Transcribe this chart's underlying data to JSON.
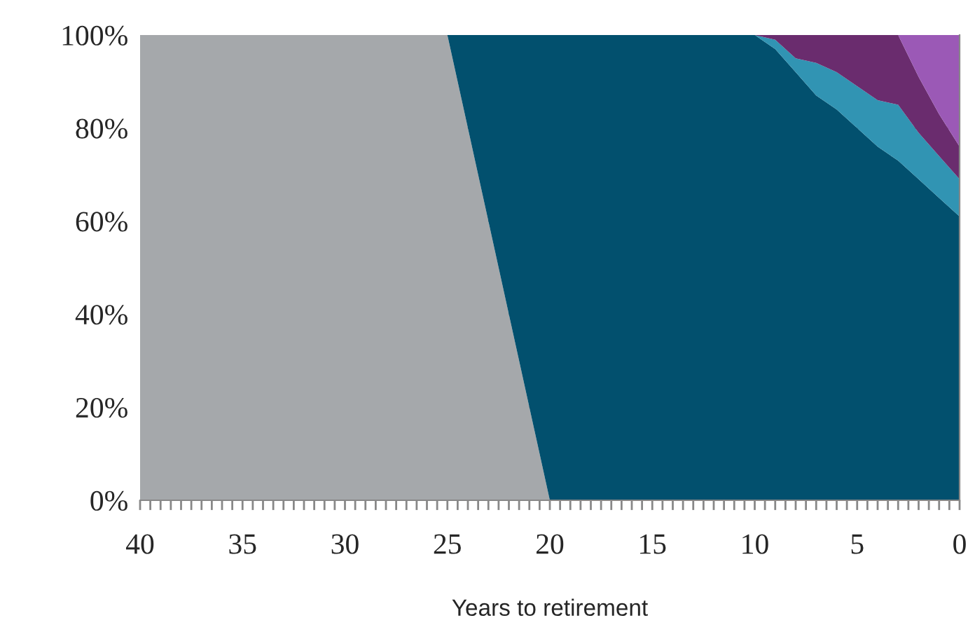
{
  "chart_data": {
    "type": "area",
    "stacked": true,
    "xlabel": "Years to retirement",
    "x": [
      40,
      39,
      38,
      37,
      36,
      35,
      34,
      33,
      32,
      31,
      30,
      29,
      28,
      27,
      26,
      25,
      24,
      23,
      22,
      21,
      20,
      19,
      18,
      17,
      16,
      15,
      14,
      13,
      12,
      11,
      10,
      9,
      8,
      7,
      6,
      5,
      4,
      3,
      2,
      1,
      0
    ],
    "series": [
      {
        "color": "#a5a8ab",
        "values": [
          100,
          100,
          100,
          100,
          100,
          100,
          100,
          100,
          100,
          100,
          100,
          100,
          100,
          100,
          100,
          100,
          80,
          60,
          40,
          20,
          0,
          null,
          null,
          null,
          null,
          null,
          null,
          null,
          null,
          null,
          null,
          null,
          null,
          null,
          null,
          null,
          null,
          null,
          null,
          null,
          null
        ]
      },
      {
        "color": "#02506e",
        "values": [
          null,
          null,
          null,
          null,
          null,
          null,
          null,
          null,
          null,
          null,
          null,
          null,
          null,
          null,
          null,
          0,
          20,
          40,
          60,
          80,
          100,
          100,
          100,
          100,
          100,
          100,
          100,
          100,
          100,
          100,
          100,
          97,
          92,
          87,
          84,
          80,
          76,
          73,
          69,
          65,
          61
        ]
      },
      {
        "color": "#3194b3",
        "values": [
          null,
          null,
          null,
          null,
          null,
          null,
          null,
          null,
          null,
          null,
          null,
          null,
          null,
          null,
          null,
          null,
          null,
          null,
          null,
          null,
          null,
          null,
          null,
          null,
          null,
          null,
          null,
          null,
          null,
          null,
          0,
          2,
          3,
          7,
          8,
          9,
          10,
          12,
          10,
          9,
          8
        ]
      },
      {
        "color": "#6a2c6e",
        "values": [
          null,
          null,
          null,
          null,
          null,
          null,
          null,
          null,
          null,
          null,
          null,
          null,
          null,
          null,
          null,
          null,
          null,
          null,
          null,
          null,
          null,
          null,
          null,
          null,
          null,
          null,
          null,
          null,
          null,
          null,
          0,
          1,
          5,
          6,
          8,
          11,
          14,
          15,
          12,
          9,
          7
        ]
      },
      {
        "color": "#9b59b6",
        "values": [
          null,
          null,
          null,
          null,
          null,
          null,
          null,
          null,
          null,
          null,
          null,
          null,
          null,
          null,
          null,
          null,
          null,
          null,
          null,
          null,
          null,
          null,
          null,
          null,
          null,
          null,
          null,
          null,
          null,
          null,
          null,
          null,
          null,
          null,
          null,
          null,
          null,
          0,
          9,
          17,
          24
        ]
      }
    ],
    "xlim": [
      40,
      0
    ],
    "ylim": [
      0,
      100
    ],
    "xticks": [
      40,
      {
        "value": 39.5,
        "label": null
      },
      {
        "value": 39,
        "label": null
      },
      {
        "value": 38.5,
        "label": null
      },
      {
        "value": 38,
        "label": null
      },
      {
        "value": 37.5,
        "label": null
      },
      {
        "value": 37,
        "label": null
      },
      {
        "value": 36.5,
        "label": null
      },
      {
        "value": 36,
        "label": null
      },
      {
        "value": 35.5,
        "label": null
      },
      35,
      {
        "value": 34.5,
        "label": null
      },
      {
        "value": 34,
        "label": null
      },
      {
        "value": 33.5,
        "label": null
      },
      {
        "value": 33,
        "label": null
      },
      {
        "value": 32.5,
        "label": null
      },
      {
        "value": 32,
        "label": null
      },
      {
        "value": 31.5,
        "label": null
      },
      {
        "value": 31,
        "label": null
      },
      {
        "value": 30.5,
        "label": null
      },
      30,
      {
        "value": 29.5,
        "label": null
      },
      {
        "value": 29,
        "label": null
      },
      {
        "value": 28.5,
        "label": null
      },
      {
        "value": 28,
        "label": null
      },
      {
        "value": 27.5,
        "label": null
      },
      {
        "value": 27,
        "label": null
      },
      {
        "value": 26.5,
        "label": null
      },
      {
        "value": 26,
        "label": null
      },
      {
        "value": 25.5,
        "label": null
      },
      25,
      {
        "value": 24.5,
        "label": null
      },
      {
        "value": 24,
        "label": null
      },
      {
        "value": 23.5,
        "label": null
      },
      {
        "value": 23,
        "label": null
      },
      {
        "value": 22.5,
        "label": null
      },
      {
        "value": 22,
        "label": null
      },
      {
        "value": 21.5,
        "label": null
      },
      {
        "value": 21,
        "label": null
      },
      {
        "value": 20.5,
        "label": null
      },
      20,
      {
        "value": 19.5,
        "label": null
      },
      {
        "value": 19,
        "label": null
      },
      {
        "value": 18.5,
        "label": null
      },
      {
        "value": 18,
        "label": null
      },
      {
        "value": 17.5,
        "label": null
      },
      {
        "value": 17,
        "label": null
      },
      {
        "value": 16.5,
        "label": null
      },
      {
        "value": 16,
        "label": null
      },
      {
        "value": 15.5,
        "label": null
      },
      15,
      {
        "value": 14.5,
        "label": null
      },
      {
        "value": 14,
        "label": null
      },
      {
        "value": 13.5,
        "label": null
      },
      {
        "value": 13,
        "label": null
      },
      {
        "value": 12.5,
        "label": null
      },
      {
        "value": 12,
        "label": null
      },
      {
        "value": 11.5,
        "label": null
      },
      {
        "value": 11,
        "label": null
      },
      {
        "value": 10.5,
        "label": null
      },
      10,
      {
        "value": 9.5,
        "label": null
      },
      {
        "value": 9,
        "label": null
      },
      {
        "value": 8.5,
        "label": null
      },
      {
        "value": 8,
        "label": null
      },
      {
        "value": 7.5,
        "label": null
      },
      {
        "value": 7,
        "label": null
      },
      {
        "value": 6.5,
        "label": null
      },
      {
        "value": 6,
        "label": null
      },
      {
        "value": 5.5,
        "label": null
      },
      5,
      {
        "value": 4.5,
        "label": null
      },
      {
        "value": 4,
        "label": null
      },
      {
        "value": 3.5,
        "label": null
      },
      {
        "value": 3,
        "label": null
      },
      {
        "value": 2.5,
        "label": null
      },
      {
        "value": 2,
        "label": null
      },
      {
        "value": 1.5,
        "label": null
      },
      {
        "value": 1,
        "label": null
      },
      {
        "value": 0.5,
        "label": null
      },
      0
    ],
    "yticks": [
      {
        "value": 0,
        "label": "0%"
      },
      {
        "value": 20,
        "label": "20%"
      },
      {
        "value": 40,
        "label": "40%"
      },
      {
        "value": 60,
        "label": "60%"
      },
      {
        "value": 80,
        "label": "80%"
      },
      {
        "value": 100,
        "label": "100%"
      }
    ],
    "grid": "y"
  }
}
